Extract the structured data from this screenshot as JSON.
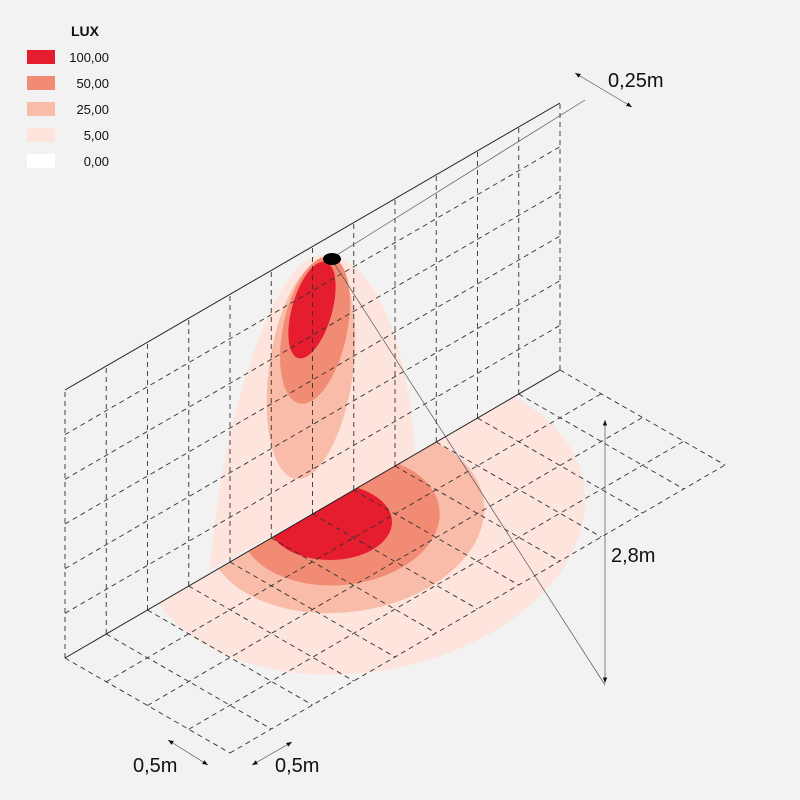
{
  "legend": {
    "title": "LUX",
    "items": [
      {
        "label": "100,00",
        "color": "#e51d2e"
      },
      {
        "label": "50,00",
        "color": "#f28b74"
      },
      {
        "label": "25,00",
        "color": "#f8bca8"
      },
      {
        "label": "5,00",
        "color": "#fde4dc"
      },
      {
        "label": "0,00",
        "color": "#ffffff"
      }
    ]
  },
  "dimensions": {
    "offset": "0,25m",
    "height": "2,8m",
    "grid_width": "0,5m",
    "grid_depth": "0,5m"
  }
}
